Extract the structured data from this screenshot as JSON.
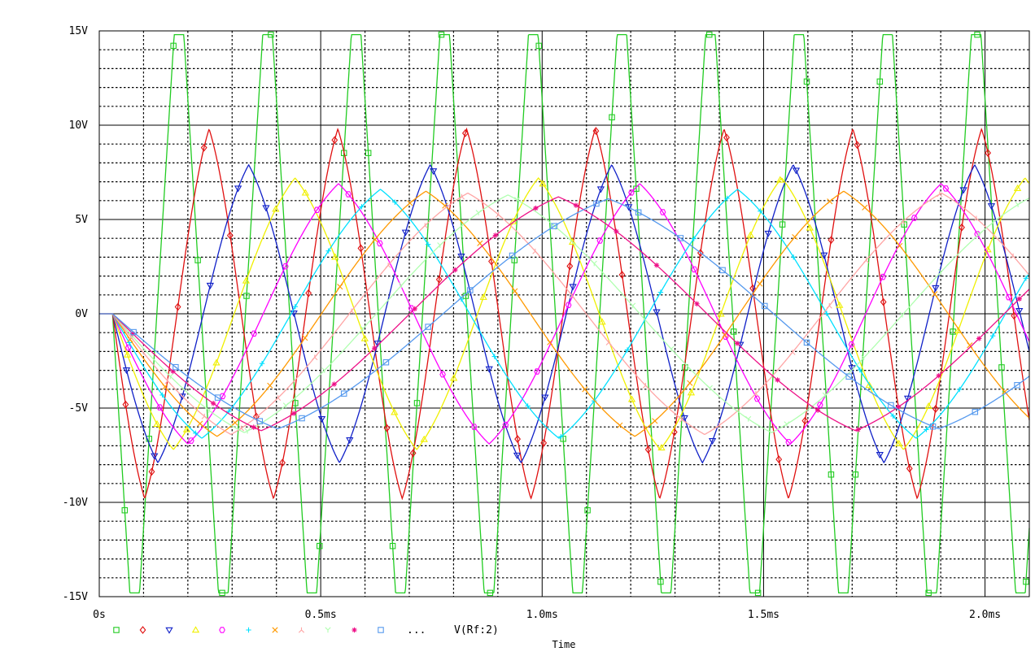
{
  "chart_data": {
    "type": "line",
    "title": "",
    "xlabel": "Time",
    "ylabel": "",
    "xlim": [
      0,
      2.1
    ],
    "ylim": [
      -15,
      15
    ],
    "x_unit": "ms",
    "grid": true,
    "x_ticks": [
      {
        "value": 0,
        "label": "0s"
      },
      {
        "value": 0.5,
        "label": "0.5ms"
      },
      {
        "value": 1.0,
        "label": "1.0ms"
      },
      {
        "value": 1.5,
        "label": "1.5ms"
      },
      {
        "value": 2.0,
        "label": "2.0ms"
      }
    ],
    "y_ticks": [
      {
        "value": 15,
        "label": "15V"
      },
      {
        "value": 10,
        "label": "10V"
      },
      {
        "value": 5,
        "label": "5V"
      },
      {
        "value": 0,
        "label": "0V"
      },
      {
        "value": -5,
        "label": "-5V"
      },
      {
        "value": -10,
        "label": "-10V"
      },
      {
        "value": -15,
        "label": "-15V"
      }
    ],
    "legend": {
      "placement": "bottom-left",
      "ellipsis": "...",
      "trace_label": "V(Rf:2)"
    },
    "series": [
      {
        "marker": "square",
        "color": "#22cc22",
        "start": 0.03,
        "freq_khz": 5.0,
        "amplitude": 14.8,
        "clip": true
      },
      {
        "marker": "diamond",
        "color": "#e01010",
        "start": 0.03,
        "freq_khz": 3.44,
        "amplitude": 9.8
      },
      {
        "marker": "triangle-down",
        "color": "#1020c8",
        "start": 0.03,
        "freq_khz": 2.44,
        "amplitude": 7.9
      },
      {
        "marker": "triangle-up",
        "color": "#f0f000",
        "start": 0.03,
        "freq_khz": 1.82,
        "amplitude": 7.2
      },
      {
        "marker": "hexagon",
        "color": "#ff00ff",
        "start": 0.03,
        "freq_khz": 1.47,
        "amplitude": 6.9
      },
      {
        "marker": "plus",
        "color": "#00e0ff",
        "start": 0.03,
        "freq_khz": 1.24,
        "amplitude": 6.6
      },
      {
        "marker": "cross",
        "color": "#ff9900",
        "start": 0.03,
        "freq_khz": 1.06,
        "amplitude": 6.5
      },
      {
        "marker": "asterisk",
        "color": "#ffa5a5",
        "start": 0.03,
        "freq_khz": 0.935,
        "amplitude": 6.4
      },
      {
        "marker": "y-shape",
        "color": "#b0ffb0",
        "start": 0.03,
        "freq_khz": 0.84,
        "amplitude": 6.3
      },
      {
        "marker": "star",
        "color": "#ee1188",
        "start": 0.03,
        "freq_khz": 0.745,
        "amplitude": 6.2
      },
      {
        "marker": "square",
        "color": "#5599ee",
        "start": 0.03,
        "freq_khz": 0.67,
        "amplitude": 6.1
      }
    ]
  }
}
